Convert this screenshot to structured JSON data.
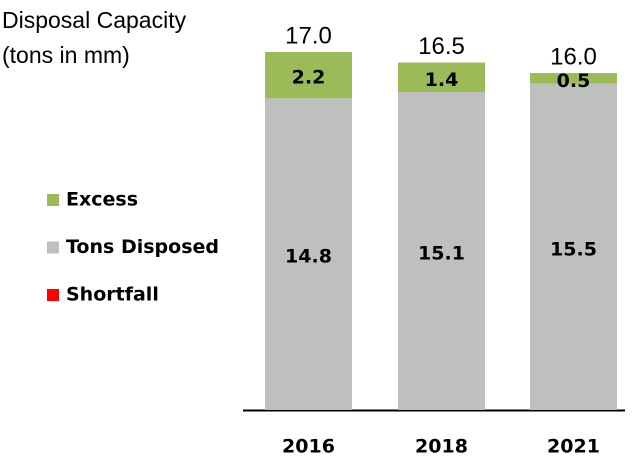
{
  "chart_data": {
    "type": "stacked_bar",
    "title": "Disposal Capacity",
    "subtitle": "(tons in mm)",
    "categories": [
      "2016",
      "2018",
      "2021"
    ],
    "series": [
      {
        "name": "Excess",
        "color": "#9bbb59",
        "values": [
          2.2,
          1.4,
          0.5
        ]
      },
      {
        "name": "Tons Disposed",
        "color": "#bfbfbf",
        "values": [
          14.8,
          15.1,
          15.5
        ]
      },
      {
        "name": "Shortfall",
        "color": "#ff0000",
        "values": [
          0,
          0,
          0
        ]
      }
    ],
    "stack_order": [
      1,
      0,
      2
    ],
    "total_labels": [
      "17.0",
      "16.5",
      "16.0"
    ],
    "ylim": [
      0,
      17
    ],
    "legend": "left"
  }
}
